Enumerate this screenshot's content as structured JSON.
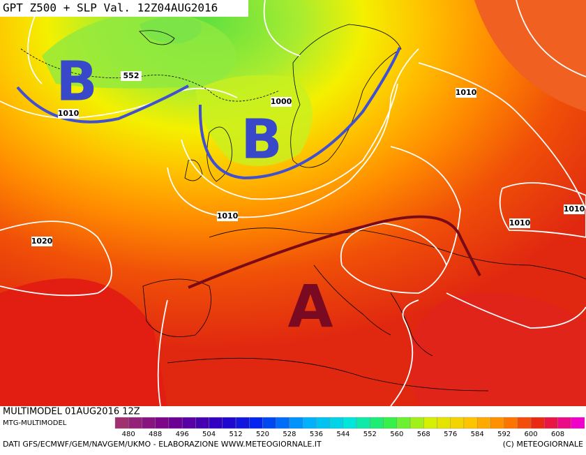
{
  "header": {
    "title": "GPT Z500 + SLP Val. 12Z04AUG2016"
  },
  "systems": [
    {
      "label": "B"
    },
    {
      "label": "B"
    },
    {
      "label": "A"
    }
  ],
  "isobar_labels": [
    "552",
    "1010",
    "1000",
    "1010",
    "1010",
    "1010",
    "1010",
    "1020"
  ],
  "footer": {
    "run": "MULTIMODEL 01AUG2016 12Z",
    "model": "MTG-MULTIMODEL",
    "sources": "DATI GFS/ECMWF/GEM/NAVGEM/UKMO - ELABORAZIONE WWW.METEOGIORNALE.IT",
    "copyright": "(C) METEOGIORNALE"
  },
  "colorbar": {
    "labels": [
      480,
      488,
      496,
      504,
      512,
      520,
      528,
      536,
      544,
      552,
      560,
      568,
      576,
      584,
      592,
      600,
      608
    ]
  }
}
